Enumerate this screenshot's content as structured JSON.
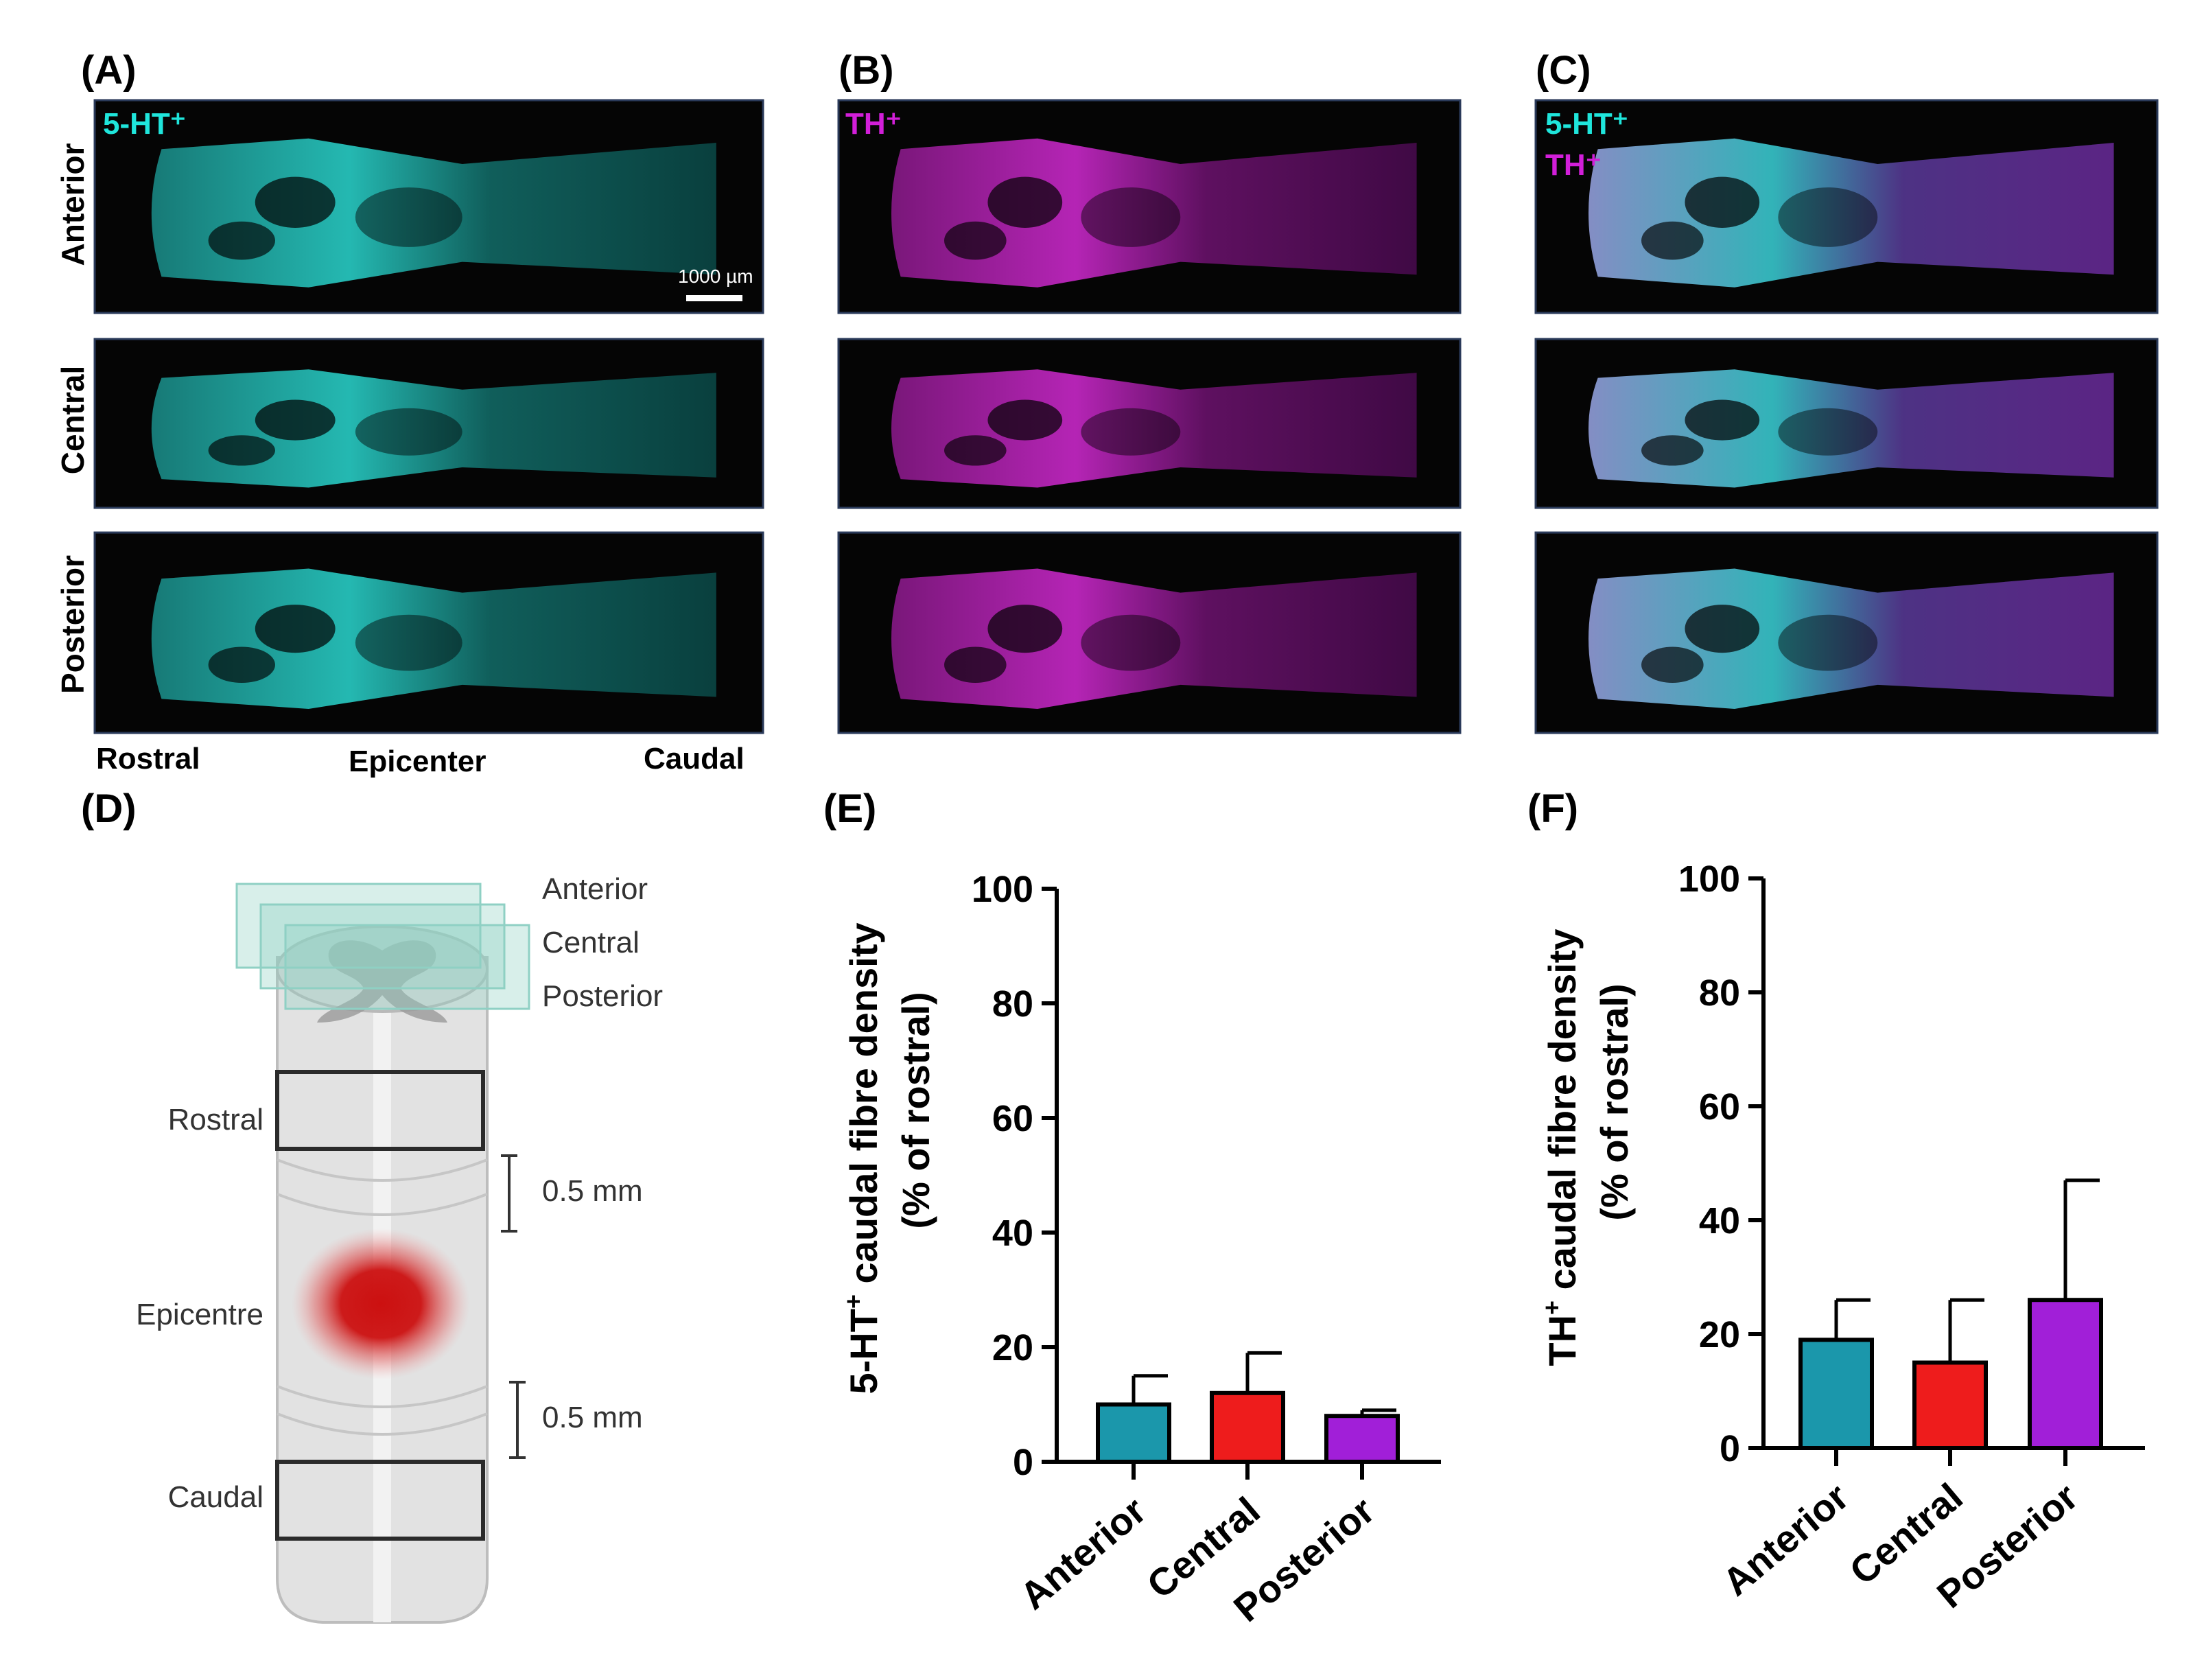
{
  "panels": {
    "a": "(A)",
    "b": "(B)",
    "c": "(C)",
    "d": "(D)",
    "e": "(E)",
    "f": "(F)"
  },
  "micrographs": {
    "rows": [
      "Anterior",
      "Central",
      "Posterior"
    ],
    "channel_5ht": "5-HT⁺",
    "channel_th": "TH⁺",
    "scale_bar": "1000 µm",
    "axis_labels": [
      "Rostral",
      "Epicenter",
      "Caudal"
    ]
  },
  "diagram": {
    "planes": [
      "Anterior",
      "Central",
      "Posterior"
    ],
    "regions": [
      "Rostral",
      "Epicentre",
      "Caudal"
    ],
    "distances": [
      "0.5 mm",
      "0.5 mm"
    ]
  },
  "colors": {
    "cyan": "#1fe6dc",
    "magenta": "#d21fd9",
    "anterior_bar": "#1b97ab",
    "central_bar": "#ee1c1c",
    "posterior_bar": "#a11fd8",
    "lesion": "#d01515"
  },
  "chart_data": [
    {
      "type": "bar",
      "panel": "E",
      "ylabel_line1_prefix": "5-HT",
      "ylabel_line1_sup": "+",
      "ylabel_line1_suffix": " caudal fibre density",
      "ylabel_line2": "(% of rostral)",
      "categories": [
        "Anterior",
        "Central",
        "Posterior"
      ],
      "values": [
        10,
        12,
        8
      ],
      "errors": [
        5,
        7,
        1
      ],
      "ylim": [
        0,
        100
      ],
      "yticks": [
        "0",
        "20",
        "40",
        "60",
        "80",
        "100"
      ]
    },
    {
      "type": "bar",
      "panel": "F",
      "ylabel_line1_prefix": "TH",
      "ylabel_line1_sup": "+",
      "ylabel_line1_suffix": " caudal fibre density",
      "ylabel_line2": "(% of rostral)",
      "categories": [
        "Anterior",
        "Central",
        "Posterior"
      ],
      "values": [
        19,
        15,
        26
      ],
      "errors": [
        7,
        11,
        21
      ],
      "ylim": [
        0,
        100
      ],
      "yticks": [
        "0",
        "20",
        "40",
        "60",
        "80",
        "100"
      ]
    }
  ]
}
